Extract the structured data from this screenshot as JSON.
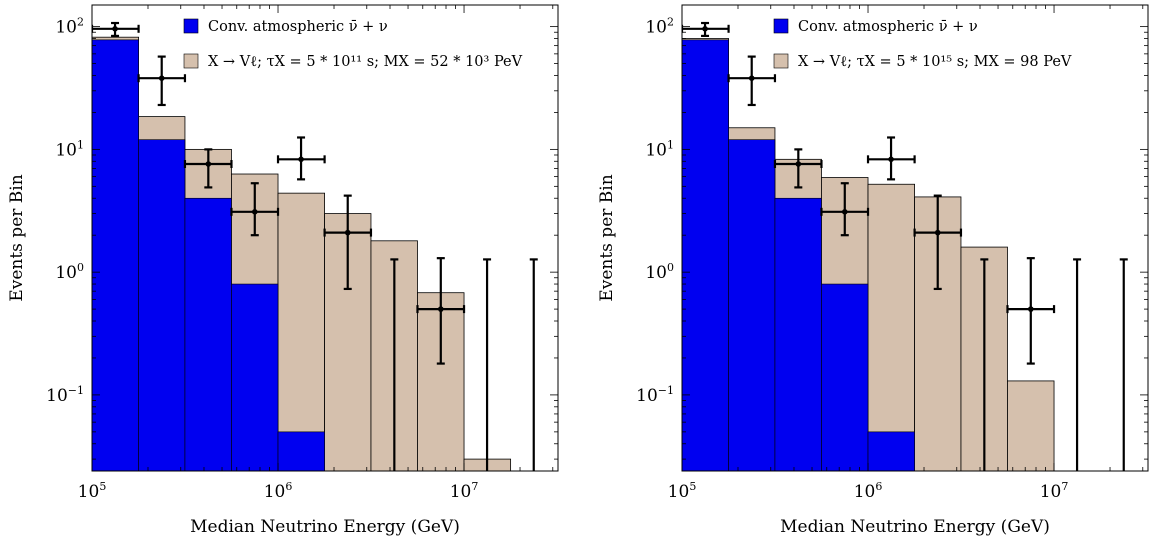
{
  "colors": {
    "atm": "#0000f0",
    "signal": "#d5c0ad",
    "frame": "#000000",
    "data": "#000000"
  },
  "chart_data": [
    {
      "type": "bar",
      "subtype": "stacked-step-histogram-log",
      "xlabel": "Median Neutrino Energy (GeV)",
      "ylabel": "Events per Bin",
      "x_scale": "log",
      "y_scale": "log",
      "xlim": [
        100000,
        32000000
      ],
      "ylim": [
        0.024,
        150
      ],
      "xticks": [
        {
          "value": 100000,
          "base": "10",
          "exp": "5"
        },
        {
          "value": 1000000,
          "base": "10",
          "exp": "6"
        },
        {
          "value": 10000000,
          "base": "10",
          "exp": "7"
        }
      ],
      "yticks": [
        {
          "value": 0.1,
          "base": "10",
          "exp": "−1"
        },
        {
          "value": 1,
          "base": "10",
          "exp": "0"
        },
        {
          "value": 10,
          "base": "10",
          "exp": "1"
        },
        {
          "value": 100,
          "base": "10",
          "exp": "2"
        }
      ],
      "legend": {
        "placement": "top-right",
        "atm_label": "Conv. atmospheric ν̄ + ν",
        "signal_label": "X → Vℓ; τX = 5 * 10¹¹ s; MX = 52 * 10³ PeV"
      },
      "bin_edges": [
        100000,
        178000,
        316000,
        562000,
        1000000,
        1780000,
        3160000,
        5620000,
        10000000,
        17800000,
        31600000
      ],
      "atm_values": [
        78,
        12,
        4,
        0.8,
        0.05,
        0.0005,
        0.0005,
        0.0005,
        0.0005,
        0.0005
      ],
      "total_values": [
        82,
        18.5,
        10,
        6.3,
        4.4,
        3,
        1.8,
        0.68,
        0.03,
        0.01
      ],
      "data_points": [
        {
          "x": 133000,
          "y": 96,
          "xlo": 100000,
          "xhi": 178000,
          "ylo": 84,
          "yhi": 107
        },
        {
          "x": 237000,
          "y": 38,
          "xlo": 178000,
          "xhi": 316000,
          "ylo": 23,
          "yhi": 57
        },
        {
          "x": 422000,
          "y": 7.6,
          "xlo": 316000,
          "xhi": 562000,
          "ylo": 4.9,
          "yhi": 10
        },
        {
          "x": 750000,
          "y": 3.1,
          "xlo": 562000,
          "xhi": 1000000,
          "ylo": 2,
          "yhi": 5.3
        },
        {
          "x": 1330000,
          "y": 8.3,
          "xlo": 1000000,
          "xhi": 1780000,
          "ylo": 5.7,
          "yhi": 12.5
        },
        {
          "x": 2370000,
          "y": 2.1,
          "xlo": 1780000,
          "xhi": 3160000,
          "ylo": 0.73,
          "yhi": 4.2
        },
        {
          "x": 4220000,
          "y": null,
          "ylo": 0.024,
          "yhi": 1.27
        },
        {
          "x": 7500000,
          "y": 0.5,
          "xlo": 5620000,
          "xhi": 10000000,
          "ylo": 0.18,
          "yhi": 1.3
        },
        {
          "x": 13300000,
          "y": null,
          "ylo": 0.024,
          "yhi": 1.27
        },
        {
          "x": 23700000,
          "y": null,
          "ylo": 0.024,
          "yhi": 1.27
        }
      ]
    },
    {
      "type": "bar",
      "subtype": "stacked-step-histogram-log",
      "xlabel": "Median Neutrino Energy (GeV)",
      "ylabel": "Events per Bin",
      "x_scale": "log",
      "y_scale": "log",
      "xlim": [
        100000,
        32000000
      ],
      "ylim": [
        0.024,
        150
      ],
      "xticks": [
        {
          "value": 100000,
          "base": "10",
          "exp": "5"
        },
        {
          "value": 1000000,
          "base": "10",
          "exp": "6"
        },
        {
          "value": 10000000,
          "base": "10",
          "exp": "7"
        }
      ],
      "yticks": [
        {
          "value": 0.1,
          "base": "10",
          "exp": "−1"
        },
        {
          "value": 1,
          "base": "10",
          "exp": "0"
        },
        {
          "value": 10,
          "base": "10",
          "exp": "1"
        },
        {
          "value": 100,
          "base": "10",
          "exp": "2"
        }
      ],
      "legend": {
        "placement": "top-right",
        "atm_label": "Conv. atmospheric ν̄ + ν",
        "signal_label": "X → Vℓ; τX = 5 * 10¹⁵ s; MX = 98 PeV"
      },
      "bin_edges": [
        100000,
        178000,
        316000,
        562000,
        1000000,
        1780000,
        3160000,
        5620000,
        10000000,
        17800000,
        31600000
      ],
      "atm_values": [
        78,
        12,
        4,
        0.8,
        0.05,
        0.0005,
        0.0005,
        0.0005,
        0.0005,
        0.0005
      ],
      "total_values": [
        80,
        15,
        8.3,
        5.9,
        5.2,
        4.1,
        1.6,
        0.13,
        0.0005,
        0.0005
      ],
      "data_points": [
        {
          "x": 133000,
          "y": 96,
          "xlo": 100000,
          "xhi": 178000,
          "ylo": 84,
          "yhi": 107
        },
        {
          "x": 237000,
          "y": 38,
          "xlo": 178000,
          "xhi": 316000,
          "ylo": 23,
          "yhi": 57
        },
        {
          "x": 422000,
          "y": 7.6,
          "xlo": 316000,
          "xhi": 562000,
          "ylo": 4.9,
          "yhi": 10
        },
        {
          "x": 750000,
          "y": 3.1,
          "xlo": 562000,
          "xhi": 1000000,
          "ylo": 2,
          "yhi": 5.3
        },
        {
          "x": 1330000,
          "y": 8.3,
          "xlo": 1000000,
          "xhi": 1780000,
          "ylo": 5.7,
          "yhi": 12.5
        },
        {
          "x": 2370000,
          "y": 2.1,
          "xlo": 1780000,
          "xhi": 3160000,
          "ylo": 0.73,
          "yhi": 4.2
        },
        {
          "x": 4220000,
          "y": null,
          "ylo": 0.024,
          "yhi": 1.27
        },
        {
          "x": 7500000,
          "y": 0.5,
          "xlo": 5620000,
          "xhi": 10000000,
          "ylo": 0.18,
          "yhi": 1.3
        },
        {
          "x": 13300000,
          "y": null,
          "ylo": 0.024,
          "yhi": 1.27
        },
        {
          "x": 23700000,
          "y": null,
          "ylo": 0.024,
          "yhi": 1.27
        }
      ]
    }
  ]
}
